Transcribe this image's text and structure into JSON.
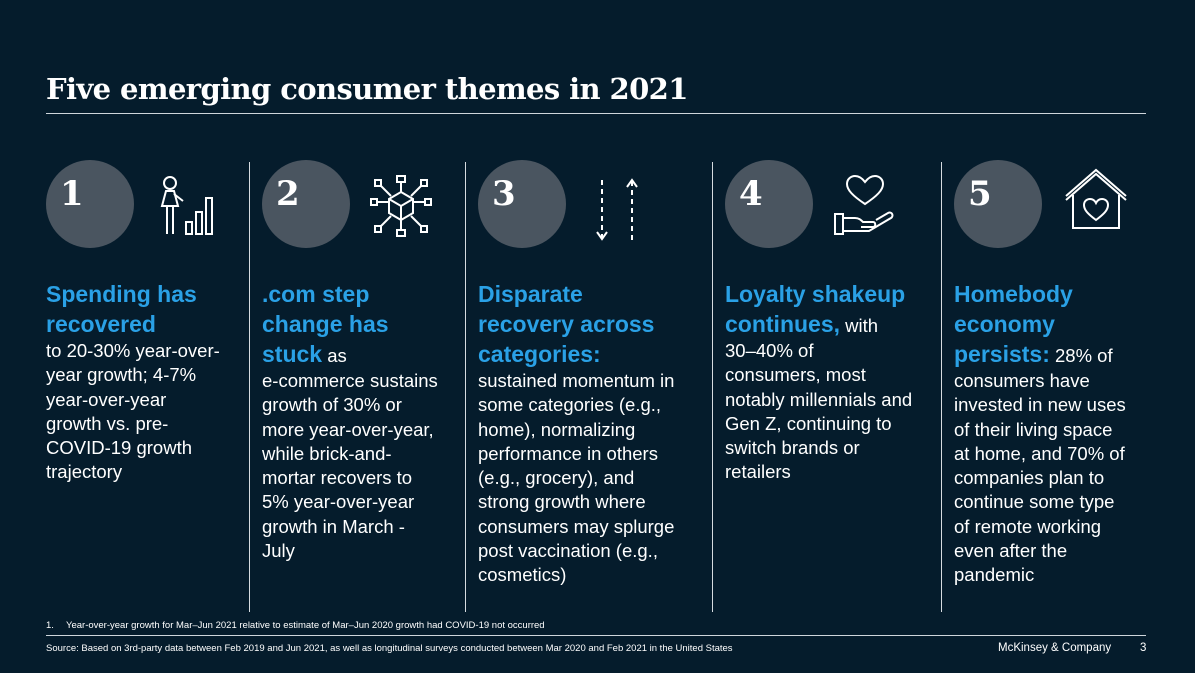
{
  "title": "Five emerging consumer themes in 2021",
  "themes": [
    {
      "number": "1",
      "icon": "person-growth-chart-icon",
      "lines": [
        {
          "hl": true,
          "text": "Spending has"
        },
        {
          "hl": true,
          "text": "recovered"
        },
        {
          "hl": false,
          "text": "to 20-30% year-over-"
        },
        {
          "hl": false,
          "text": "year growth; 4-7%"
        },
        {
          "hl": false,
          "text": "year-over-year"
        },
        {
          "hl": false,
          "text": "growth vs. pre-"
        },
        {
          "hl": false,
          "text": "COVID-19 growth"
        },
        {
          "hl": false,
          "text": "trajectory"
        }
      ]
    },
    {
      "number": "2",
      "icon": "network-cube-icon",
      "lines": [
        {
          "hl": true,
          "text": ".com step"
        },
        {
          "hl": true,
          "text": "change has"
        },
        {
          "hl": true,
          "text": "stuck",
          "tail": " as"
        },
        {
          "hl": false,
          "text": "e-commerce sustains"
        },
        {
          "hl": false,
          "text": "growth of 30% or"
        },
        {
          "hl": false,
          "text": "more year-over-year,"
        },
        {
          "hl": false,
          "text": "while brick-and-"
        },
        {
          "hl": false,
          "text": "mortar recovers to"
        },
        {
          "hl": false,
          "text": "5% year-over-year"
        },
        {
          "hl": false,
          "text": "growth in March -"
        },
        {
          "hl": false,
          "text": "July"
        }
      ]
    },
    {
      "number": "3",
      "icon": "up-down-arrows-icon",
      "lines": [
        {
          "hl": true,
          "text": "Disparate"
        },
        {
          "hl": true,
          "text": "recovery across"
        },
        {
          "hl": true,
          "text": "categories:"
        },
        {
          "hl": false,
          "text": "sustained momentum in"
        },
        {
          "hl": false,
          "text": "some categories (e.g.,"
        },
        {
          "hl": false,
          "text": "home), normalizing"
        },
        {
          "hl": false,
          "text": "performance in others"
        },
        {
          "hl": false,
          "text": "(e.g., grocery), and"
        },
        {
          "hl": false,
          "text": "strong growth where"
        },
        {
          "hl": false,
          "text": "consumers may splurge"
        },
        {
          "hl": false,
          "text": "post vaccination (e.g.,"
        },
        {
          "hl": false,
          "text": "cosmetics)"
        }
      ]
    },
    {
      "number": "4",
      "icon": "heart-hand-icon",
      "lines": [
        {
          "hl": true,
          "text": "Loyalty shakeup"
        },
        {
          "hl": true,
          "text": "continues,",
          "tail": " with"
        },
        {
          "hl": false,
          "text": "30–40% of"
        },
        {
          "hl": false,
          "text": "consumers, most"
        },
        {
          "hl": false,
          "text": "notably millennials and"
        },
        {
          "hl": false,
          "text": "Gen Z, continuing to"
        },
        {
          "hl": false,
          "text": "switch brands or"
        },
        {
          "hl": false,
          "text": "retailers"
        }
      ]
    },
    {
      "number": "5",
      "icon": "heart-house-icon",
      "lines": [
        {
          "hl": true,
          "text": "Homebody"
        },
        {
          "hl": true,
          "text": "economy"
        },
        {
          "hl": true,
          "text": "persists:",
          "tail": " 28% of"
        },
        {
          "hl": false,
          "text": "consumers have"
        },
        {
          "hl": false,
          "text": "invested in new uses"
        },
        {
          "hl": false,
          "text": "of their living space"
        },
        {
          "hl": false,
          "text": "at home, and 70% of"
        },
        {
          "hl": false,
          "text": "companies plan to"
        },
        {
          "hl": false,
          "text": "continue some type"
        },
        {
          "hl": false,
          "text": "of remote working"
        },
        {
          "hl": false,
          "text": "even after the"
        },
        {
          "hl": false,
          "text": "pandemic"
        }
      ]
    }
  ],
  "footnote": {
    "number": "1.",
    "text": "Year-over-year growth for Mar–Jun 2021 relative to estimate of Mar–Jun 2020 growth had COVID-19 not occurred"
  },
  "source": "Source: Based on 3rd-party data between Feb 2019 and Jun 2021, as well as longitudinal surveys conducted between Mar 2020 and Feb 2021 in the United States",
  "brand": "McKinsey & Company",
  "page_number": "3",
  "colors": {
    "background": "#051c2c",
    "accent": "#2aa1e6",
    "circle": "#4a5560"
  }
}
